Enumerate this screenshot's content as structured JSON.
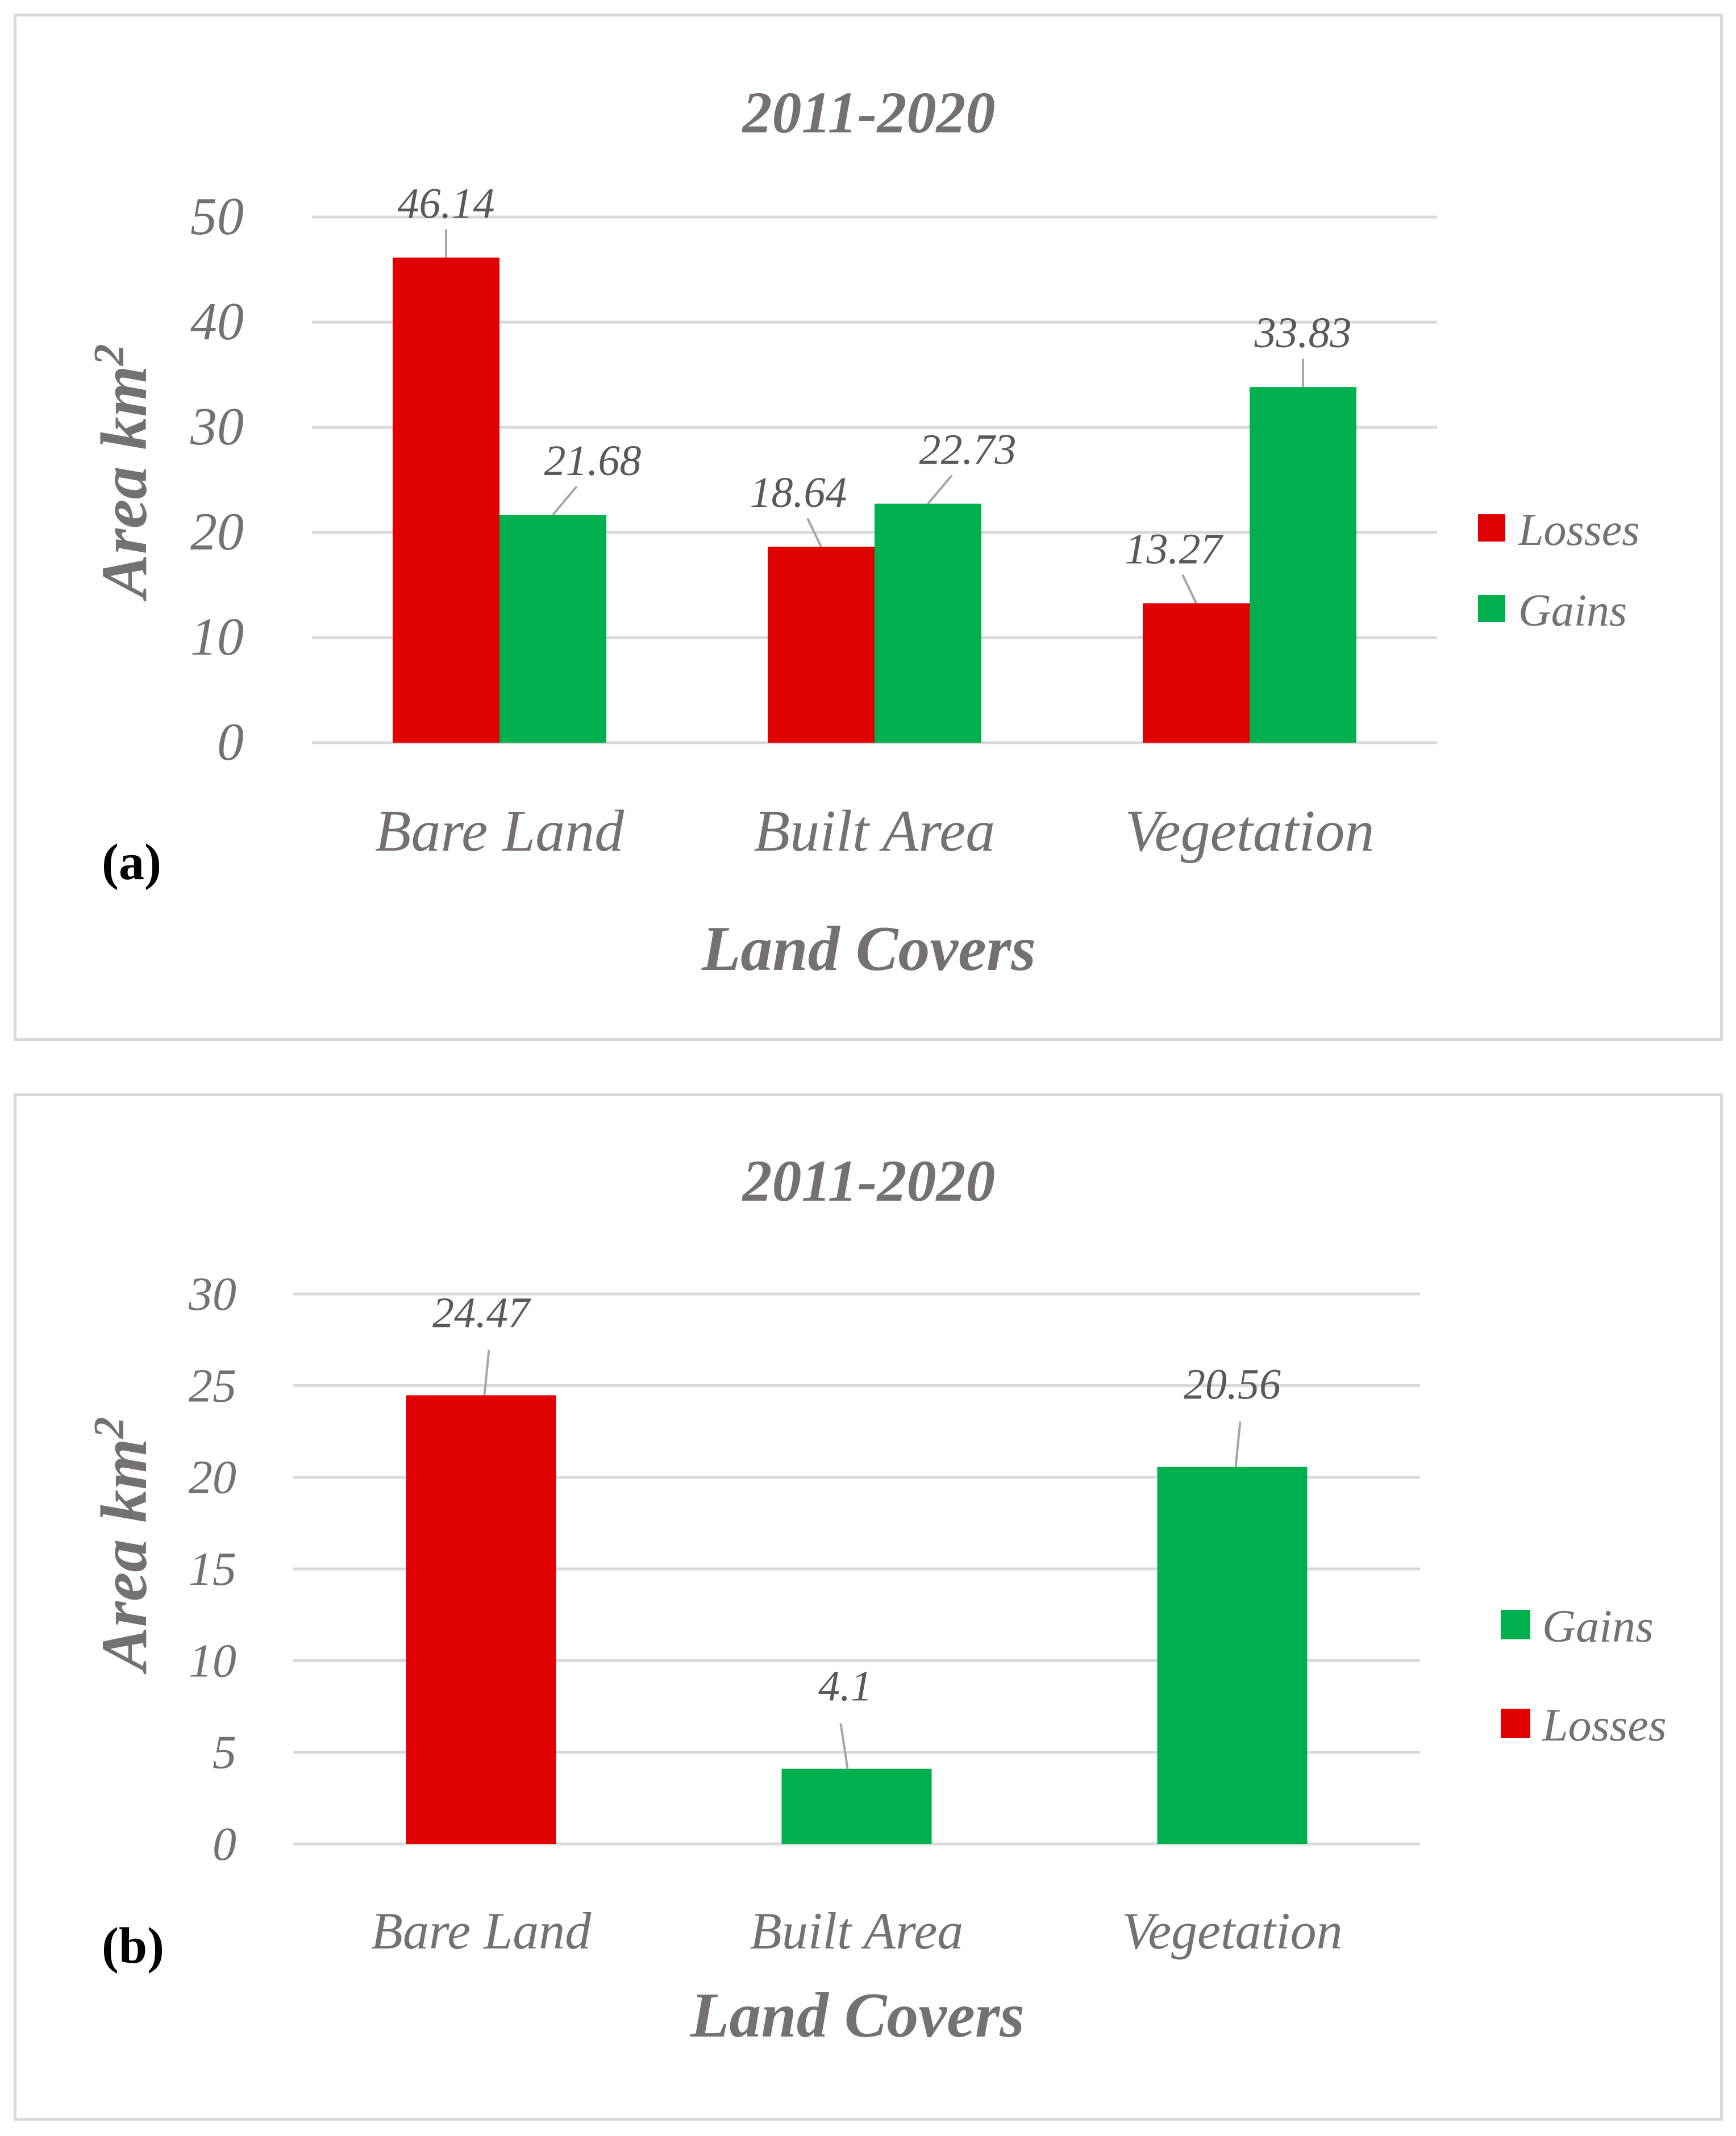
{
  "chart_data": [
    {
      "type": "bar",
      "panel_label": "(a)",
      "title": "2011-2020",
      "xlabel": "Land Covers",
      "ylabel": "Area km",
      "ylabel_superscript": "2",
      "ylim": [
        0,
        50
      ],
      "yticks": [
        "0",
        "10",
        "20",
        "30",
        "40",
        "50"
      ],
      "grid": true,
      "legend_position": "right",
      "categories": [
        "Bare Land",
        "Built Area",
        "Vegetation"
      ],
      "series": [
        {
          "name": "Losses",
          "color": "#e00000",
          "values": [
            46.14,
            18.64,
            13.27
          ],
          "labels": [
            "46.14",
            "18.64",
            "13.27"
          ]
        },
        {
          "name": "Gains",
          "color": "#00b04f",
          "values": [
            21.68,
            22.73,
            33.83
          ],
          "labels": [
            "21.68",
            "22.73",
            "33.83"
          ]
        }
      ],
      "legend": [
        {
          "name": "Losses",
          "color": "#e00000"
        },
        {
          "name": "Gains",
          "color": "#00b04f"
        }
      ]
    },
    {
      "type": "bar",
      "panel_label": "(b)",
      "title": "2011-2020",
      "xlabel": "Land Covers",
      "ylabel": "Area km",
      "ylabel_superscript": "2",
      "ylim": [
        0,
        30
      ],
      "yticks": [
        "0",
        "5",
        "10",
        "15",
        "20",
        "25",
        "30"
      ],
      "grid": true,
      "legend_position": "right",
      "categories": [
        "Bare Land",
        "Built Area",
        "Vegetation"
      ],
      "values": [
        24.47,
        4.1,
        20.56
      ],
      "labels": [
        "24.47",
        "4.1",
        "20.56"
      ],
      "bar_series": [
        "Losses",
        "Gains",
        "Gains"
      ],
      "legend": [
        {
          "name": "Gains",
          "color": "#00b04f"
        },
        {
          "name": "Losses",
          "color": "#e00000"
        }
      ]
    }
  ]
}
